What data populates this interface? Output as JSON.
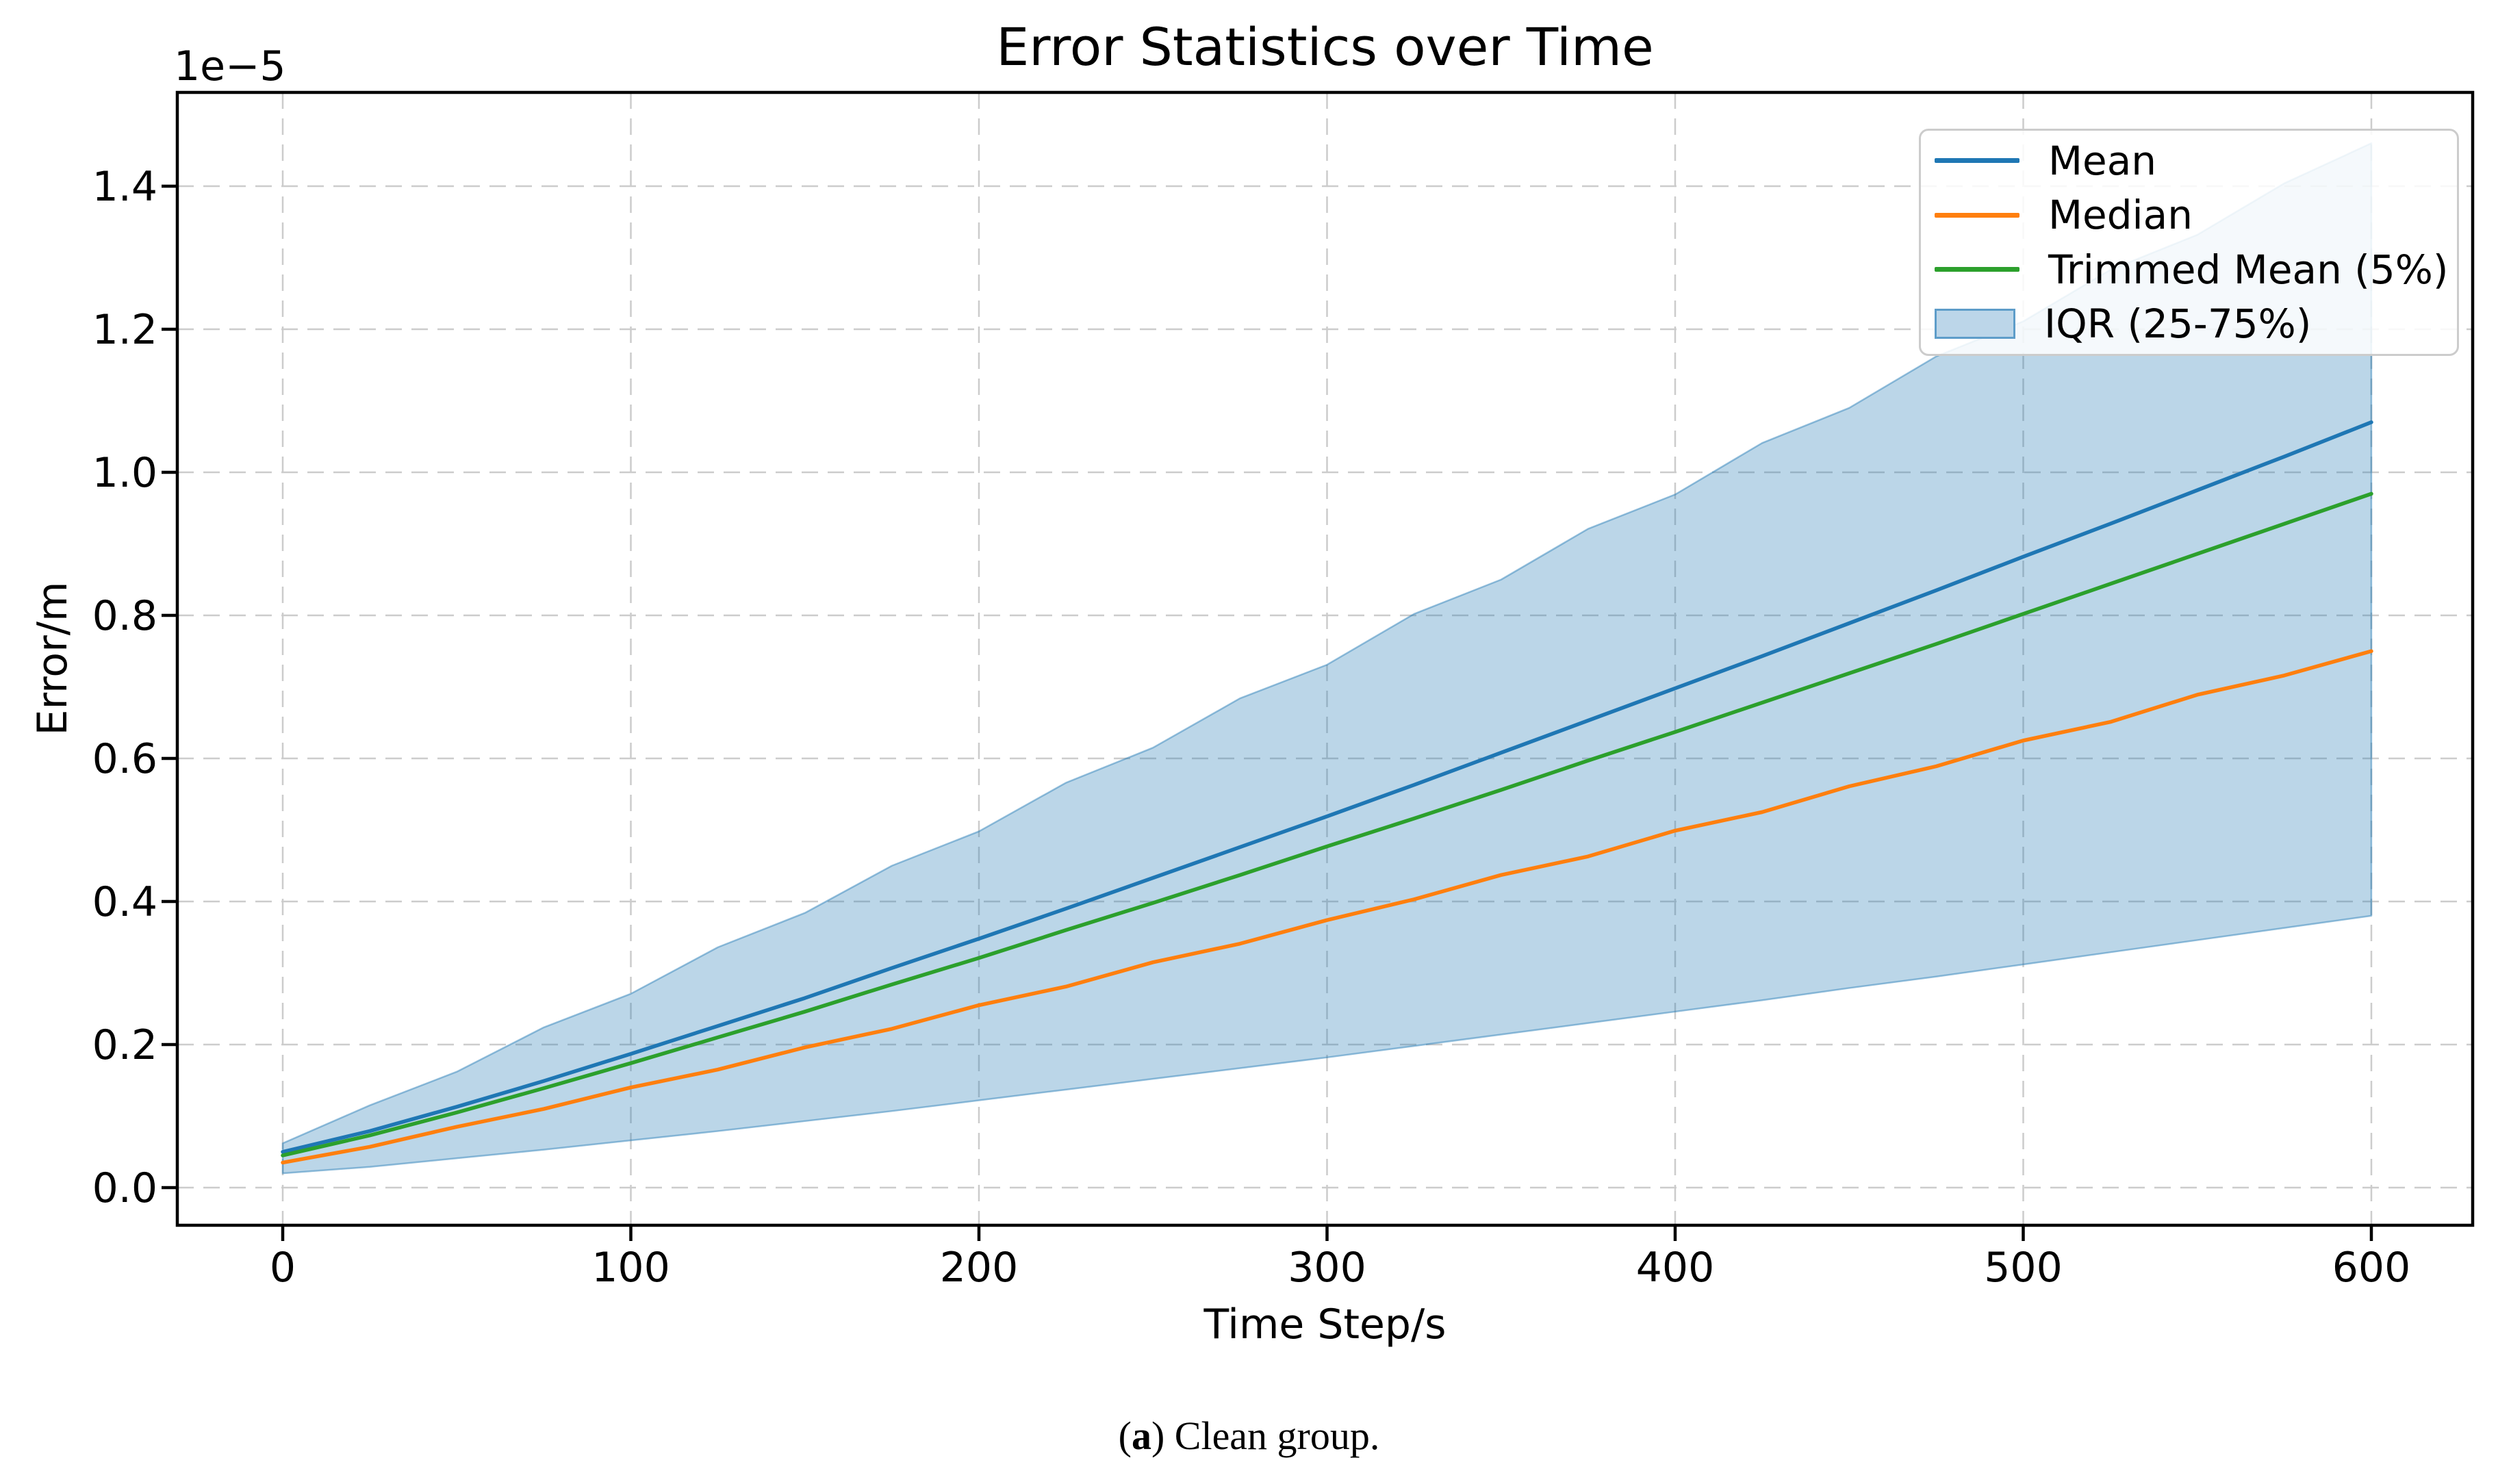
{
  "figure": {
    "title": "Error Statistics over Time",
    "offset_text": "1e−5",
    "xlabel": "Time Step/s",
    "ylabel": "Error/m",
    "caption": {
      "prefix": "(",
      "label": "a",
      "suffix": ") Clean group."
    }
  },
  "chart_data": {
    "type": "line",
    "title": "Error Statistics over Time",
    "xlabel": "Time Step/s",
    "ylabel": "Error/m",
    "y_scale_note": "y values are in units of 1e-5 m; axis offset text reads 1e-5",
    "xlim": [
      -30,
      630
    ],
    "ylim_1e5": [
      -0.052,
      1.532
    ],
    "grid": true,
    "grid_style": "dashed",
    "legend_position": "upper right",
    "x_ticks": [
      0,
      100,
      200,
      300,
      400,
      500,
      600
    ],
    "y_ticks_1e5": [
      0.0,
      0.2,
      0.4,
      0.6,
      0.8,
      1.0,
      1.2,
      1.4
    ],
    "x": [
      0,
      25,
      50,
      75,
      100,
      125,
      150,
      175,
      200,
      225,
      250,
      275,
      300,
      325,
      350,
      375,
      400,
      425,
      450,
      475,
      500,
      525,
      550,
      575,
      600
    ],
    "series": [
      {
        "name": "Mean",
        "color": "#1f77b4",
        "values_1e5": [
          0.05,
          0.079,
          0.113,
          0.149,
          0.187,
          0.226,
          0.265,
          0.307,
          0.348,
          0.39,
          0.433,
          0.476,
          0.519,
          0.563,
          0.608,
          0.653,
          0.698,
          0.743,
          0.789,
          0.835,
          0.882,
          0.928,
          0.975,
          1.022,
          1.07
        ]
      },
      {
        "name": "Median",
        "color": "#ff7f0e",
        "values_1e5": [
          0.035,
          0.057,
          0.085,
          0.11,
          0.14,
          0.165,
          0.196,
          0.222,
          0.255,
          0.281,
          0.315,
          0.341,
          0.374,
          0.403,
          0.437,
          0.463,
          0.499,
          0.525,
          0.561,
          0.589,
          0.625,
          0.651,
          0.689,
          0.716,
          0.75
        ]
      },
      {
        "name": "Trimmed Mean (5%)",
        "color": "#2ca02c",
        "values_1e5": [
          0.045,
          0.073,
          0.105,
          0.139,
          0.174,
          0.21,
          0.246,
          0.284,
          0.321,
          0.36,
          0.398,
          0.437,
          0.477,
          0.516,
          0.556,
          0.597,
          0.637,
          0.678,
          0.719,
          0.76,
          0.802,
          0.844,
          0.886,
          0.928,
          0.97
        ]
      }
    ],
    "band": {
      "name": "IQR (25-75%)",
      "color": "#1f77b4",
      "fill_opacity": 0.3,
      "lower_1e5": [
        0.02,
        0.029,
        0.041,
        0.053,
        0.066,
        0.079,
        0.093,
        0.107,
        0.122,
        0.137,
        0.152,
        0.167,
        0.182,
        0.198,
        0.214,
        0.23,
        0.246,
        0.262,
        0.279,
        0.295,
        0.312,
        0.329,
        0.346,
        0.363,
        0.38
      ],
      "upper_1e5": [
        0.062,
        0.115,
        0.162,
        0.224,
        0.271,
        0.336,
        0.384,
        0.45,
        0.498,
        0.566,
        0.615,
        0.684,
        0.731,
        0.802,
        0.85,
        0.921,
        0.969,
        1.041,
        1.09,
        1.162,
        1.211,
        1.283,
        1.332,
        1.404,
        1.46
      ]
    },
    "legend": [
      {
        "label": "Mean",
        "swatch": "line",
        "color": "#1f77b4"
      },
      {
        "label": "Median",
        "swatch": "line",
        "color": "#ff7f0e"
      },
      {
        "label": "Trimmed Mean (5%)",
        "swatch": "line",
        "color": "#2ca02c"
      },
      {
        "label": "IQR (25-75%)",
        "swatch": "patch",
        "color": "#bcd6e9"
      }
    ],
    "colors": {
      "grid": "#cccccc",
      "spine": "#000000",
      "band_fill": "rgba(31,119,180,0.3)",
      "band_edge": "rgba(31,119,180,0.45)"
    }
  }
}
